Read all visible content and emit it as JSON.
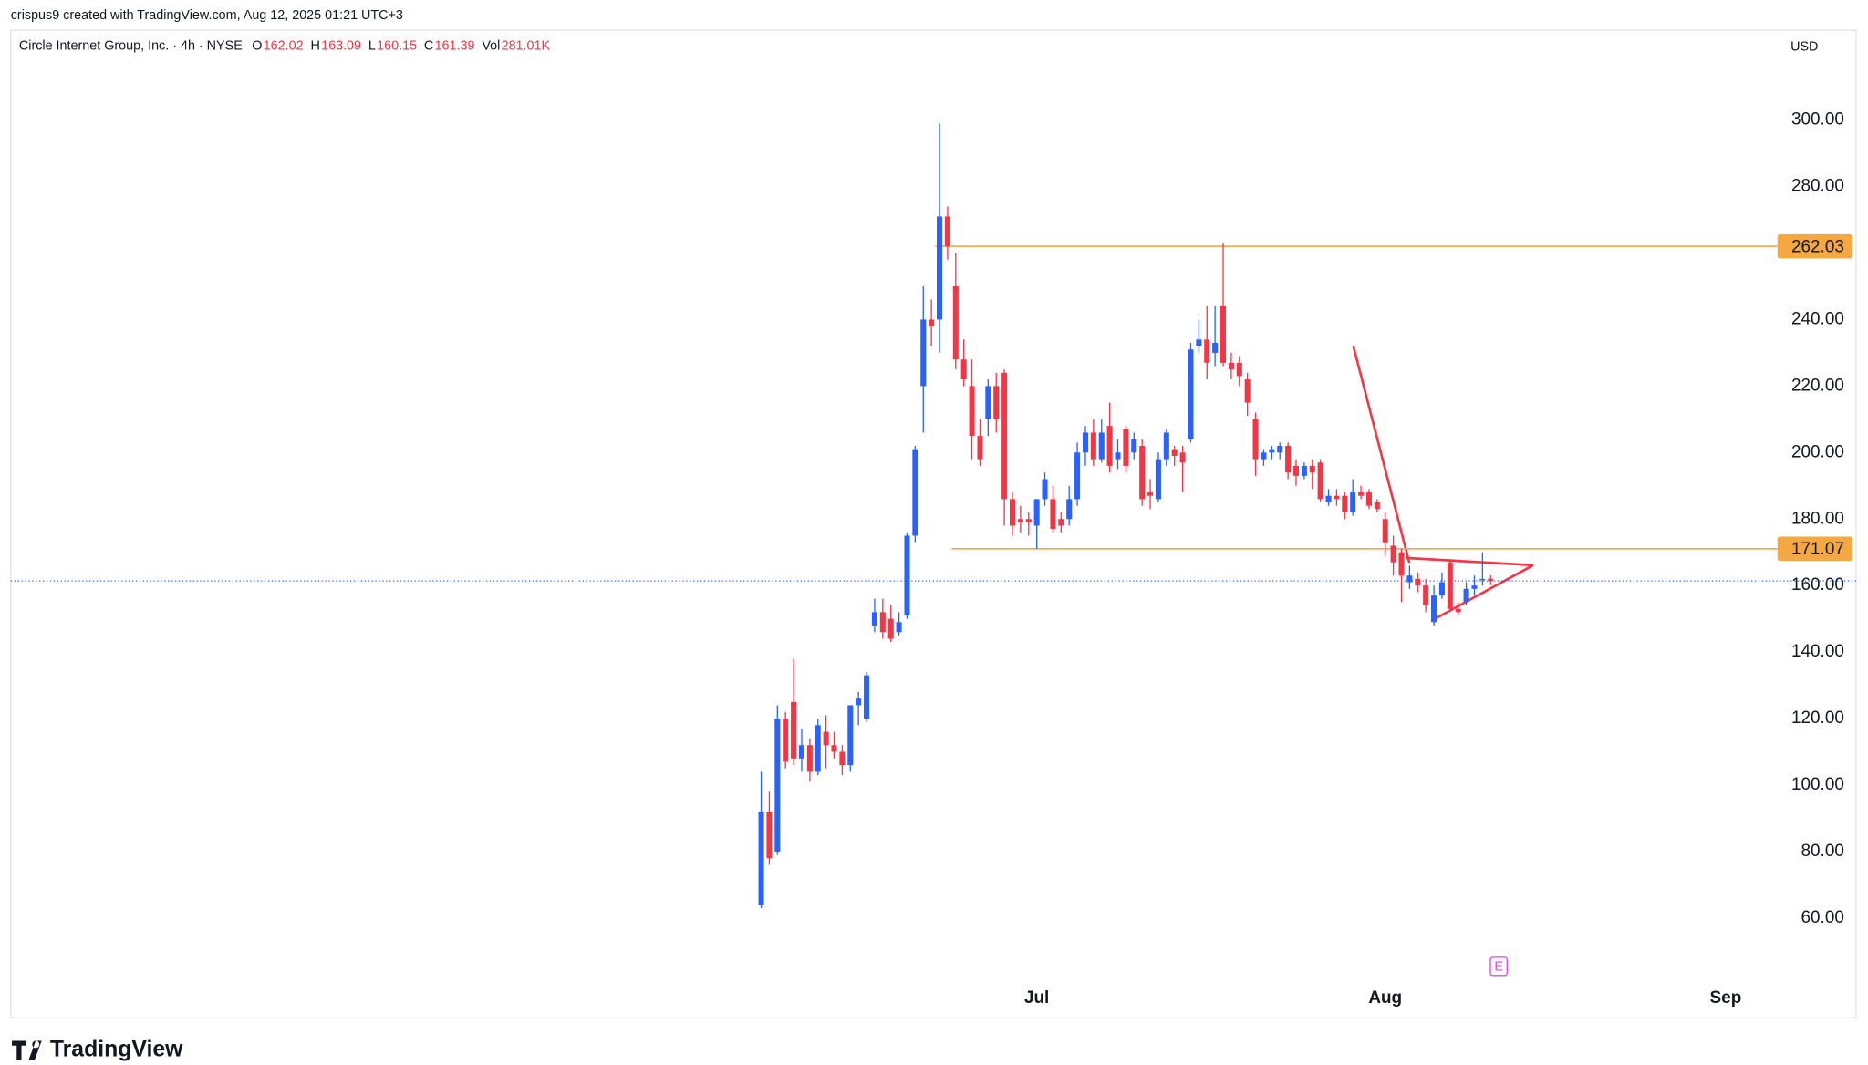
{
  "header": {
    "credit": "crispus9 created with TradingView.com, Aug 12, 2025 01:21 UTC+3",
    "symbol": "Circle Internet Group, Inc. · 4h · NYSE",
    "legend": [
      {
        "label": "O",
        "text": "162.02"
      },
      {
        "label": "H",
        "text": "163.09"
      },
      {
        "label": "L",
        "text": "160.15"
      },
      {
        "label": "C",
        "text": "161.39"
      },
      {
        "label": "Vol",
        "text": "281.01K"
      }
    ],
    "currency": "USD"
  },
  "chart_data": {
    "type": "candlestick",
    "x": [
      0,
      1,
      2,
      3,
      4,
      5,
      6,
      7,
      8,
      9,
      10,
      11,
      12,
      13,
      14,
      15,
      16,
      17,
      18,
      19,
      20,
      21,
      22,
      23,
      24,
      25,
      26,
      27,
      28,
      29,
      30,
      31,
      32,
      33,
      34,
      35,
      36,
      37,
      38,
      39,
      40,
      41,
      42,
      43,
      44,
      45,
      46,
      47,
      48,
      49,
      50,
      51,
      52,
      53,
      54,
      55,
      56,
      57,
      58,
      59,
      60,
      61,
      62,
      63,
      64,
      65,
      66,
      67,
      68,
      69,
      70,
      71,
      72,
      73,
      74,
      75,
      76,
      77,
      78,
      79,
      80,
      81,
      82,
      83,
      84,
      85,
      86,
      87,
      88,
      89,
      90
    ],
    "open": [
      64,
      92,
      80,
      120,
      125,
      108,
      112,
      104,
      116,
      112,
      110,
      106,
      124,
      120,
      148,
      152,
      150,
      146,
      151,
      175,
      220,
      240,
      240,
      271,
      250,
      228,
      220,
      205,
      210,
      220,
      224,
      186,
      180,
      180,
      178,
      186,
      186,
      180,
      180,
      186,
      200,
      206,
      198,
      208,
      198,
      207,
      200,
      202,
      188,
      186,
      198,
      201,
      200,
      204,
      232,
      234,
      230,
      244,
      227,
      227,
      222,
      210,
      198,
      200,
      200,
      202,
      196,
      193,
      196,
      197,
      185,
      187,
      187,
      182,
      188,
      188,
      185,
      180,
      172,
      170,
      161,
      162,
      160,
      149,
      157,
      167,
      153,
      155,
      159,
      162,
      162.02
    ],
    "high": [
      104,
      98,
      124,
      122,
      138,
      117,
      114,
      120,
      121,
      116,
      112,
      124,
      128,
      134,
      156,
      156,
      154,
      152,
      176,
      202,
      250,
      246,
      299,
      274,
      260,
      234,
      228,
      210,
      222,
      224,
      225,
      188,
      184,
      182,
      186,
      194,
      190,
      182,
      190,
      203,
      208,
      210,
      210,
      215,
      204,
      208,
      206,
      204,
      192,
      200,
      207,
      202,
      202,
      233,
      240,
      244,
      244,
      263,
      230,
      229,
      224,
      212,
      201,
      202,
      203,
      203,
      198,
      197,
      198,
      198,
      189,
      189,
      188,
      192,
      190,
      189,
      186,
      182,
      175,
      171,
      166,
      164,
      162,
      160,
      164,
      168,
      155,
      161,
      163,
      170,
      163.09
    ],
    "low": [
      63,
      76,
      79,
      105,
      106,
      104,
      101,
      103,
      105,
      108,
      103,
      104,
      118,
      119,
      146,
      144,
      143,
      145,
      150,
      173,
      206,
      232,
      230,
      258,
      225,
      220,
      198,
      196,
      205,
      206,
      178,
      175,
      176,
      175,
      171,
      184,
      176,
      176,
      178,
      184,
      196,
      196,
      197,
      194,
      195,
      194,
      198,
      184,
      183,
      185,
      196,
      196,
      188,
      203,
      230,
      222,
      226,
      226,
      222,
      220,
      211,
      193,
      196,
      198,
      198,
      192,
      190,
      192,
      189,
      185,
      184,
      184,
      180,
      181,
      186,
      183,
      182,
      169,
      163,
      155,
      159,
      158,
      152,
      148,
      156,
      152,
      151,
      154,
      157,
      160,
      160.15
    ],
    "close": [
      92,
      78,
      120,
      107,
      108,
      112,
      104,
      118,
      112,
      110,
      106,
      124,
      126,
      133,
      152,
      146,
      144,
      149,
      175,
      201,
      240,
      238,
      271,
      262,
      228,
      222,
      205,
      198,
      220,
      210,
      186,
      178,
      179,
      179,
      186,
      192,
      177,
      178,
      186,
      200,
      206,
      198,
      206,
      196,
      200,
      196,
      204,
      186,
      187,
      198,
      206,
      199,
      197,
      231,
      234,
      227,
      233,
      227,
      225,
      223,
      215,
      198,
      200,
      201,
      202,
      194,
      193,
      196,
      194,
      186,
      187,
      186,
      182,
      188,
      187,
      184,
      183,
      173,
      167,
      163,
      163,
      160,
      154,
      157,
      161,
      153,
      152,
      159,
      160,
      162,
      161.39
    ],
    "up_color": "#2962ff",
    "down_color": "#f23645",
    "xlim": [
      -92.6,
      125.1
    ],
    "xticks": [
      {
        "value": 34,
        "label": "Jul"
      },
      {
        "value": 77,
        "label": "Aug"
      },
      {
        "value": 119,
        "label": "Sep"
      }
    ],
    "ylim": [
      30,
      327
    ],
    "yticks": [
      {
        "value": 60,
        "label": "60.00"
      },
      {
        "value": 80,
        "label": "80.00"
      },
      {
        "value": 100,
        "label": "100.00"
      },
      {
        "value": 120,
        "label": "120.00"
      },
      {
        "value": 140,
        "label": "140.00"
      },
      {
        "value": 160,
        "label": "160.00"
      },
      {
        "value": 180,
        "label": "180.00"
      },
      {
        "value": 200,
        "label": "200.00"
      },
      {
        "value": 220,
        "label": "220.00"
      },
      {
        "value": 240,
        "label": "240.00"
      },
      {
        "value": 260,
        "label": "260.00"
      },
      {
        "value": 280,
        "label": "280.00"
      },
      {
        "value": 300,
        "label": "300.00"
      }
    ],
    "grid": false,
    "hlines": [
      {
        "value": 262.03,
        "from": 21.5,
        "color": "#f5a742"
      },
      {
        "value": 171.07,
        "from": 23.5,
        "color": "#f5a742"
      }
    ],
    "last_price_line": {
      "value": 161.39,
      "color": "#2962ff"
    },
    "events": [
      {
        "x": 91,
        "label": "E"
      }
    ],
    "brand": "TradingView"
  }
}
